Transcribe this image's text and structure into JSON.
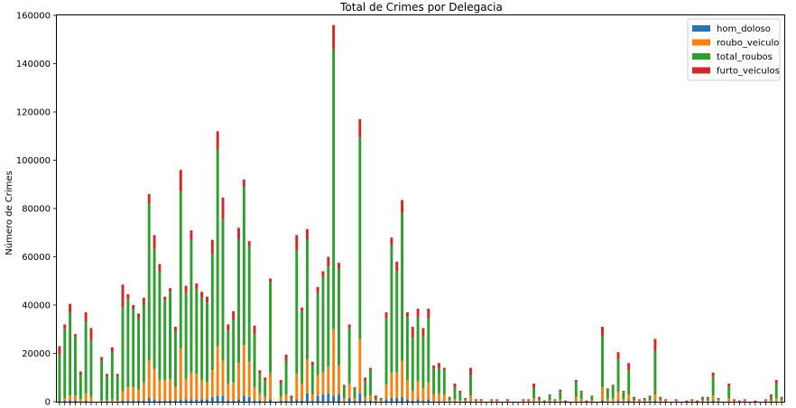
{
  "chart_data": {
    "type": "bar",
    "stacked": true,
    "title": "Total de Crimes por Delegacia",
    "xlabel": "",
    "ylabel": "Número de Crimes",
    "ylim": [
      0,
      160000
    ],
    "yticks": [
      "0",
      "20000",
      "40000",
      "60000",
      "80000",
      "100000",
      "120000",
      "140000",
      "160000"
    ],
    "legend_position": "top-right",
    "grid": false,
    "series": [
      {
        "name": "hom_doloso",
        "color": "#1f77b4"
      },
      {
        "name": "roubo_veiculo",
        "color": "#ff7f0e"
      },
      {
        "name": "total_roubos",
        "color": "#2ca02c"
      },
      {
        "name": "furto_veiculos",
        "color": "#d62728"
      }
    ],
    "stack_totals": [
      23000,
      32000,
      40500,
      28000,
      12500,
      37000,
      30500,
      0,
      18500,
      11500,
      22500,
      11500,
      48500,
      44500,
      40000,
      36500,
      43000,
      86000,
      69000,
      57000,
      43500,
      47000,
      31000,
      96000,
      48000,
      71000,
      49000,
      45500,
      43500,
      67000,
      112000,
      84500,
      32000,
      37500,
      72000,
      92000,
      66500,
      31500,
      13000,
      10000,
      51000,
      0,
      9000,
      19500,
      2500,
      69000,
      39000,
      71500,
      16500,
      47500,
      54000,
      60000,
      156000,
      57500,
      7000,
      32000,
      6000,
      117000,
      10000,
      14000,
      2500,
      1500,
      37000,
      68000,
      58000,
      83500,
      37000,
      31000,
      38500,
      30500,
      38500,
      15000,
      16000,
      14000,
      2000,
      7500,
      4500,
      1500,
      14000,
      1000,
      1000,
      0,
      1000,
      1000,
      0,
      1000,
      0,
      0,
      1000,
      1000,
      7500,
      2000,
      500,
      3000,
      1000,
      5000,
      500,
      0,
      9000,
      4500,
      500,
      2500,
      0,
      31000,
      5500,
      7000,
      20500,
      4500,
      16000,
      2000,
      1000,
      1500,
      2500,
      26000,
      2000,
      1000,
      0,
      1000,
      0,
      500,
      1000,
      500,
      2000,
      2000,
      12000,
      1500,
      0,
      7500,
      1000,
      500,
      1000,
      0,
      500,
      0,
      1000,
      3000,
      9000,
      2000
    ],
    "orange_tops": [
      0,
      1500,
      2500,
      2500,
      1000,
      3500,
      2000,
      0,
      500,
      500,
      1000,
      500,
      4500,
      6000,
      6000,
      5000,
      8000,
      17000,
      13500,
      9000,
      9000,
      9500,
      6000,
      22000,
      9500,
      12000,
      11500,
      9000,
      8000,
      13000,
      23000,
      17000,
      7500,
      8000,
      16000,
      23500,
      16500,
      6000,
      3500,
      2000,
      12000,
      0,
      2000,
      3000,
      0,
      11500,
      7500,
      17500,
      3000,
      11000,
      12000,
      14500,
      30000,
      15000,
      1500,
      7500,
      1500,
      26000,
      2000,
      2500,
      500,
      500,
      7000,
      12000,
      12000,
      17000,
      9000,
      4500,
      8500,
      5500,
      8000,
      3000,
      3500,
      3000,
      500,
      1000,
      500,
      500,
      2500,
      500,
      500,
      0,
      500,
      500,
      0,
      500,
      0,
      0,
      500,
      500,
      1500,
      500,
      0,
      500,
      500,
      1000,
      0,
      0,
      2000,
      1000,
      0,
      500,
      0,
      6000,
      1000,
      1500,
      4000,
      1000,
      3000,
      500,
      500,
      500,
      500,
      3000,
      500,
      500,
      0,
      500,
      0,
      0,
      500,
      0,
      500,
      500,
      2500,
      500,
      0,
      1500,
      500,
      0,
      500,
      0,
      0,
      0,
      500,
      500,
      1500,
      500
    ],
    "green_tops": [
      19500,
      30000,
      37000,
      27000,
      11000,
      33000,
      25500,
      0,
      17000,
      10500,
      20500,
      10500,
      39000,
      42500,
      38500,
      34500,
      40000,
      82000,
      63000,
      53500,
      42000,
      45500,
      29000,
      87000,
      45000,
      67000,
      46500,
      43000,
      41000,
      61000,
      104500,
      75500,
      29500,
      34000,
      67000,
      89000,
      64500,
      28000,
      11500,
      8500,
      49500,
      0,
      7500,
      16500,
      1500,
      62500,
      37500,
      67000,
      15000,
      45000,
      51500,
      56000,
      146000,
      55000,
      6500,
      30500,
      5500,
      109500,
      8500,
      13000,
      1500,
      1000,
      34500,
      65000,
      54000,
      78000,
      35000,
      26500,
      35000,
      27000,
      34500,
      13500,
      14000,
      13000,
      1500,
      6000,
      3500,
      1000,
      11000,
      500,
      500,
      0,
      500,
      500,
      0,
      500,
      0,
      0,
      500,
      500,
      5500,
      1500,
      0,
      2500,
      500,
      4000,
      0,
      0,
      8000,
      4000,
      0,
      2000,
      0,
      27000,
      5000,
      6500,
      17500,
      4000,
      13000,
      1500,
      500,
      1000,
      2000,
      21000,
      1500,
      500,
      0,
      500,
      0,
      0,
      500,
      0,
      1500,
      1500,
      10500,
      1000,
      0,
      6500,
      500,
      0,
      500,
      0,
      0,
      0,
      500,
      2000,
      7500,
      1500
    ],
    "blue_tops": [
      500,
      500,
      500,
      500,
      0,
      500,
      0,
      0,
      0,
      0,
      0,
      0,
      500,
      500,
      500,
      500,
      500,
      1500,
      1000,
      500,
      500,
      500,
      500,
      1000,
      1000,
      1000,
      1000,
      1000,
      1000,
      2000,
      2500,
      2500,
      500,
      500,
      1000,
      2500,
      2000,
      500,
      500,
      0,
      1000,
      0,
      500,
      500,
      0,
      1000,
      500,
      3500,
      500,
      2500,
      3000,
      3500,
      2500,
      3000,
      0,
      1500,
      500,
      3500,
      500,
      500,
      0,
      0,
      1000,
      1500,
      1500,
      2000,
      1000,
      500,
      1000,
      500,
      1000,
      0,
      0,
      0,
      0,
      0,
      0,
      0,
      0,
      0,
      0,
      0,
      0,
      0,
      0,
      0,
      0,
      0,
      0,
      0,
      0,
      0,
      0,
      0,
      0,
      0,
      0,
      0,
      0,
      0,
      0,
      0,
      0,
      500,
      0,
      0,
      500,
      0,
      500,
      0,
      0,
      0,
      0,
      500,
      0,
      0,
      0,
      0,
      0,
      0,
      0,
      0,
      0,
      0,
      500,
      0,
      0,
      0,
      0,
      0,
      0,
      0,
      0,
      0,
      0,
      0,
      0,
      0
    ]
  }
}
